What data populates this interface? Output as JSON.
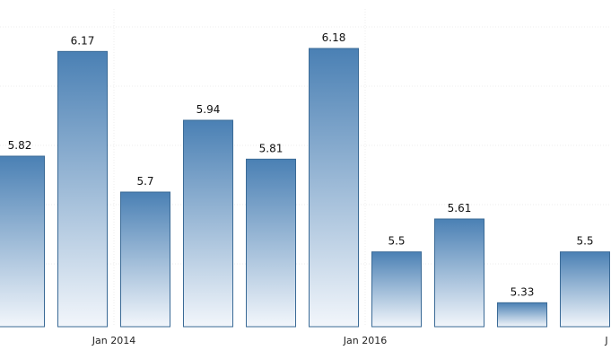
{
  "chart_data": {
    "type": "bar",
    "values": [
      5.82,
      6.17,
      5.7,
      5.94,
      5.81,
      6.18,
      5.5,
      5.61,
      5.33,
      5.5
    ],
    "value_labels": [
      "5.82",
      "6.17",
      "5.7",
      "5.94",
      "5.81",
      "6.18",
      "5.5",
      "5.61",
      "5.33",
      "5.5"
    ],
    "x_tick_labels": [
      {
        "label": "Jan 2014",
        "index": 1.5
      },
      {
        "label": "Jan 2016",
        "index": 5.5
      },
      {
        "label": "J",
        "index": 9.5
      }
    ],
    "ylim": [
      5.25,
      6.3
    ],
    "grid": true,
    "legend": "none",
    "colors": {
      "bar_top": "#4a80b4",
      "bar_bottom": "#f2f6fb",
      "bar_border": "#3a6a96",
      "grid": "#ececec"
    }
  }
}
